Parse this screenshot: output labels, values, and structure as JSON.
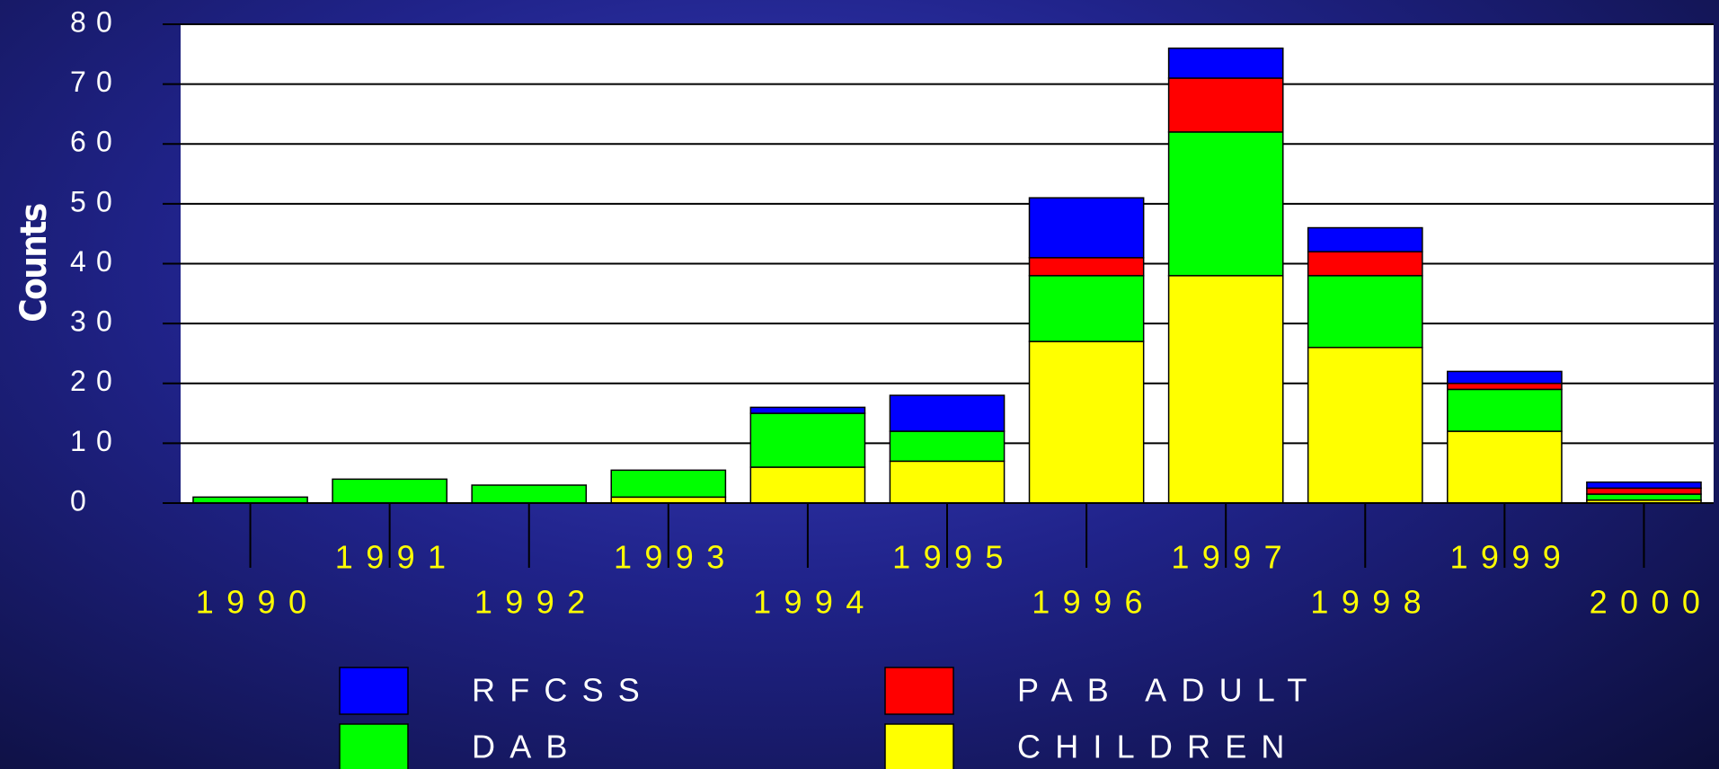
{
  "chart_data": {
    "type": "stacked_bar",
    "y_axis_label": "Counts",
    "categories": [
      "1990",
      "1991",
      "1992",
      "1993",
      "1994",
      "1995",
      "1996",
      "1997",
      "1998",
      "1999",
      "2000"
    ],
    "series": [
      {
        "name": "CHILDREN",
        "color": "#ffff00",
        "values": [
          0,
          0,
          0,
          1,
          6,
          7,
          27,
          38,
          26,
          12,
          0.5
        ]
      },
      {
        "name": "DAB",
        "color": "#00ff00",
        "values": [
          1,
          4,
          3,
          4.5,
          9,
          5,
          11,
          24,
          12,
          7,
          1
        ]
      },
      {
        "name": "PAB ADULT",
        "color": "#ff0000",
        "values": [
          0,
          0,
          0,
          0,
          0,
          0,
          3,
          9,
          4,
          1,
          1
        ]
      },
      {
        "name": "RFCSS",
        "color": "#0000ff",
        "values": [
          0,
          0,
          0,
          0,
          1,
          6,
          10,
          5,
          4,
          2,
          1
        ]
      }
    ],
    "ylim": [
      0,
      80
    ],
    "yticks": [
      0,
      10,
      20,
      30,
      40,
      50,
      60,
      70,
      80
    ],
    "grid": true
  }
}
